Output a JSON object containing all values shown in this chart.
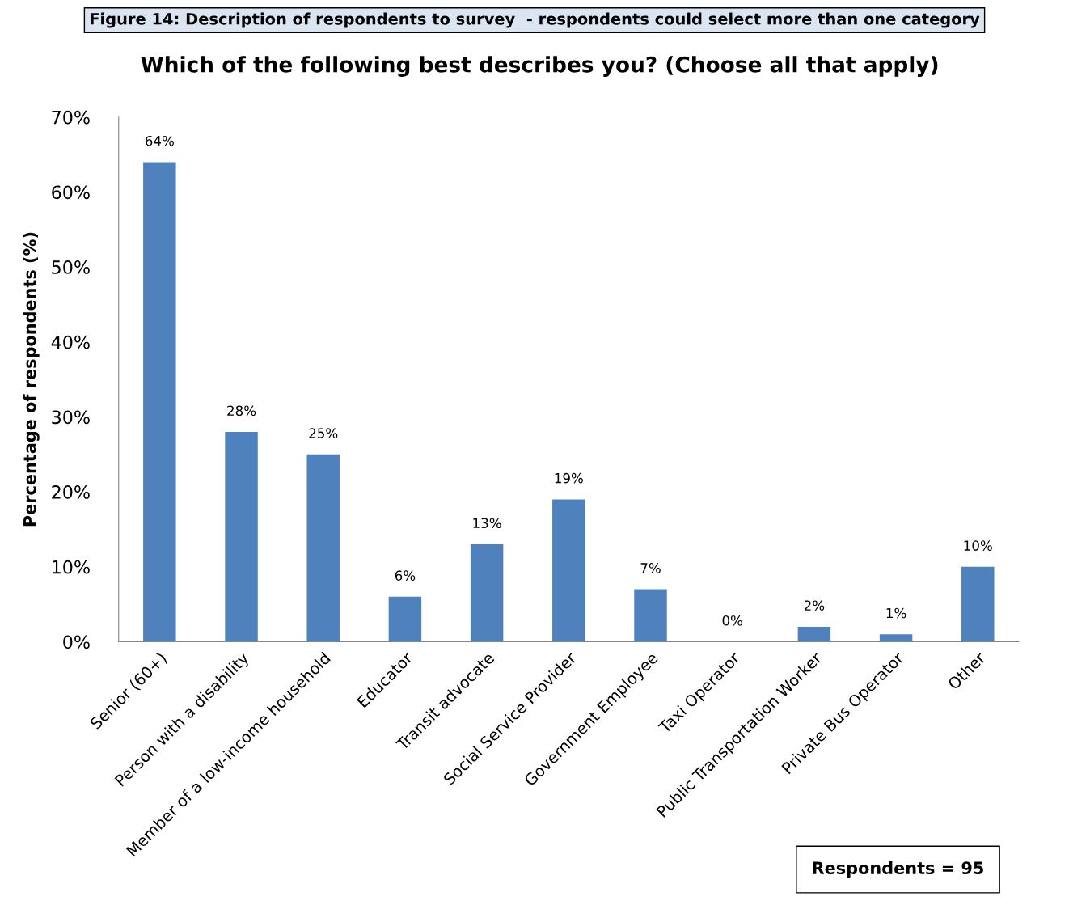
{
  "chart_data": {
    "type": "bar",
    "title": "Figure 14: Description of respondents to survey  - respondents could select more than one category",
    "subtitle": "Which of the following best describes you? (Choose all that apply)",
    "ylabel": "Percentage of respondents (%)",
    "categories": [
      "Senior (60+)",
      "Person with a disability",
      "Member of a low-income household",
      "Educator",
      "Transit advocate",
      "Social Service Provider",
      "Government Employee",
      "Taxi Operator",
      "Public Transportation Worker",
      "Private Bus Operator",
      "Other"
    ],
    "values": [
      64,
      28,
      25,
      6,
      13,
      19,
      7,
      0,
      2,
      1,
      10
    ],
    "value_labels": [
      "64%",
      "28%",
      "25%",
      "6%",
      "13%",
      "19%",
      "7%",
      "0%",
      "2%",
      "1%",
      "10%"
    ],
    "color": "#4f81bd",
    "ylim": [
      0,
      70
    ],
    "yticks": [
      {
        "value": 0,
        "label": "0%"
      },
      {
        "value": 10,
        "label": "10%"
      },
      {
        "value": 20,
        "label": "20%"
      },
      {
        "value": 30,
        "label": "30%"
      },
      {
        "value": 40,
        "label": "40%"
      },
      {
        "value": 50,
        "label": "50%"
      },
      {
        "value": 60,
        "label": "60%"
      },
      {
        "value": 70,
        "label": "70%"
      }
    ],
    "grid": false,
    "annotations": [
      "Respondents = 95"
    ]
  }
}
